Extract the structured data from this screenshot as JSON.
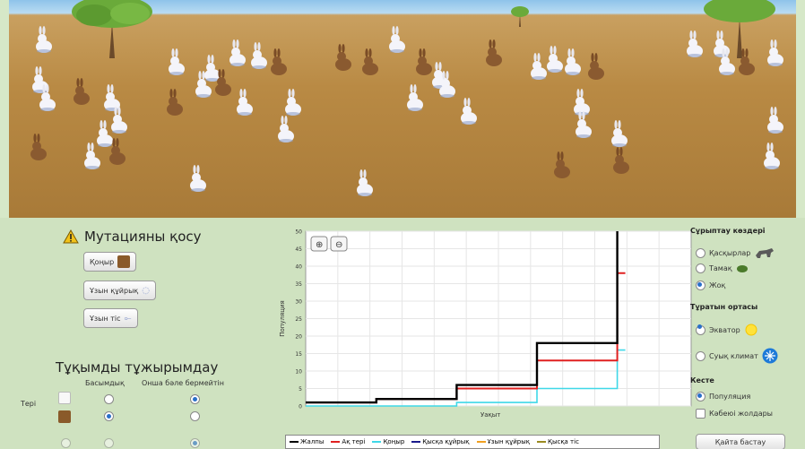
{
  "mutation": {
    "title": "Мутацияны қосу",
    "buttons": [
      "Қоңыр",
      "Ұзын құйрық",
      "Ұзын тіс"
    ]
  },
  "genes": {
    "title": "Тұқымды тұжырымдау",
    "col_dominant": "Басымдық",
    "col_recessive": "Онша бәле бермейтін",
    "row_fur": "Терi"
  },
  "selection": {
    "title": "Сұрыптау көздері",
    "options": [
      "Қасқырлар",
      "Тамақ",
      "Жоқ"
    ]
  },
  "environment": {
    "title": "Тұратын ортасы",
    "options": [
      "Экватор",
      "Суық климат"
    ]
  },
  "view": {
    "title": "Кесте",
    "options": [
      "Популяция",
      "Кәбеюі жолдары"
    ]
  },
  "reset_label": "Қайта бастау",
  "colors": {
    "total": "#000000",
    "white": "#e02020",
    "brown": "#3fd8e8",
    "short_tail": "#1a1a8c",
    "long_tail": "#f0a020",
    "short_teeth": "#9a8a20"
  },
  "chart_data": {
    "type": "line",
    "xlabel": "Уақыт",
    "ylabel": "Популяция",
    "ylim": [
      0,
      50
    ],
    "yticks": [
      0,
      5,
      10,
      15,
      20,
      25,
      30,
      35,
      40,
      45,
      50
    ],
    "legend": [
      "Жалпы",
      "Ақ тері",
      "Қоңыр",
      "Қысқа құйрық",
      "Ұзын құйрық",
      "Қысқа тіс"
    ],
    "xlim": [
      0,
      12
    ],
    "series": [
      {
        "name": "Жалпы",
        "points": [
          [
            0,
            1
          ],
          [
            2.2,
            1
          ],
          [
            2.2,
            2
          ],
          [
            4.7,
            2
          ],
          [
            4.7,
            6
          ],
          [
            7.2,
            6
          ],
          [
            7.2,
            18
          ],
          [
            9.7,
            18
          ],
          [
            9.7,
            50
          ]
        ]
      },
      {
        "name": "Ақ тері",
        "points": [
          [
            0,
            1
          ],
          [
            2.2,
            1
          ],
          [
            2.2,
            2
          ],
          [
            4.7,
            2
          ],
          [
            4.7,
            5
          ],
          [
            7.2,
            5
          ],
          [
            7.2,
            13
          ],
          [
            9.7,
            13
          ],
          [
            9.7,
            38
          ],
          [
            9.95,
            38
          ]
        ]
      },
      {
        "name": "Қоңыр",
        "points": [
          [
            0,
            0
          ],
          [
            4.7,
            0
          ],
          [
            4.7,
            1
          ],
          [
            7.2,
            1
          ],
          [
            7.2,
            5
          ],
          [
            9.7,
            5
          ],
          [
            9.7,
            16
          ],
          [
            9.95,
            16
          ]
        ]
      }
    ]
  }
}
